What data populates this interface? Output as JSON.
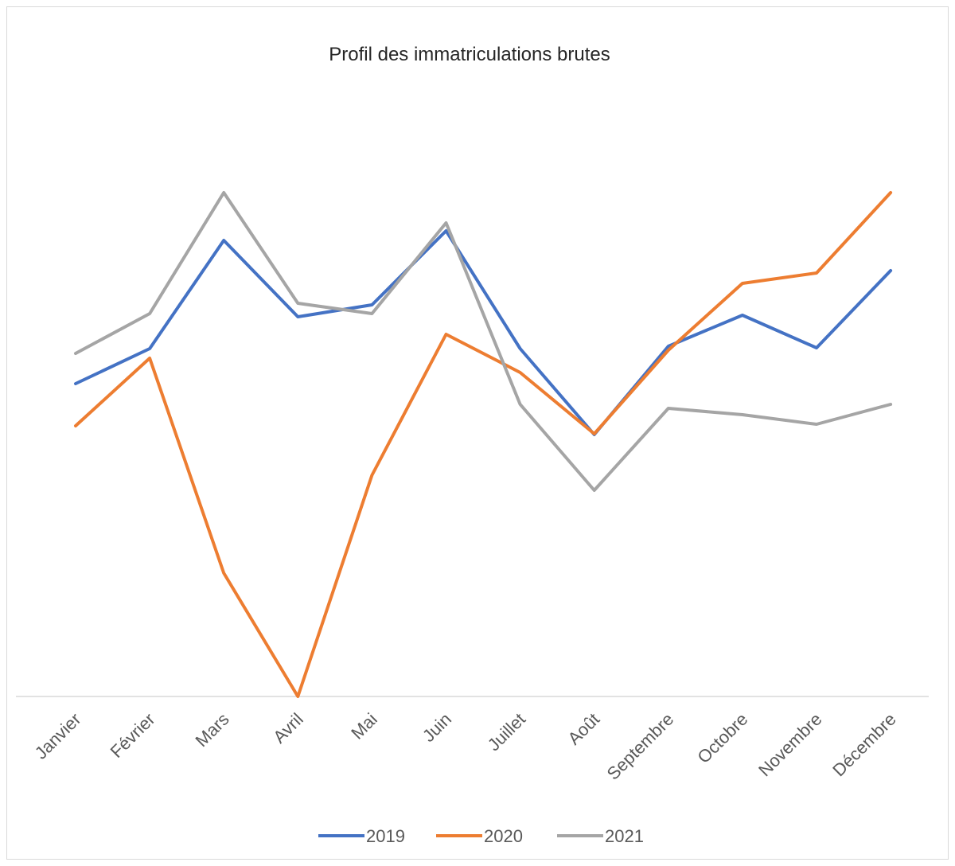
{
  "chart_data": {
    "type": "line",
    "title": "Profil des immatriculations brutes",
    "categories": [
      "Janvier",
      "Février",
      "Mars",
      "Avril",
      "Mai",
      "Juin",
      "Juillet",
      "Août",
      "Septembre",
      "Octobre",
      "Novembre",
      "Décembre"
    ],
    "series": [
      {
        "name": "2019",
        "color": "#4472c4",
        "values": [
          393,
          437,
          573,
          477,
          492,
          585,
          437,
          329,
          440,
          479,
          438,
          535
        ]
      },
      {
        "name": "2020",
        "color": "#ed7d31",
        "values": [
          340,
          425,
          155,
          0,
          278,
          455,
          407,
          330,
          435,
          519,
          532,
          633
        ]
      },
      {
        "name": "2021",
        "color": "#a5a5a5",
        "values": [
          431,
          481,
          633,
          494,
          481,
          595,
          367,
          259,
          362,
          354,
          342,
          367
        ]
      }
    ],
    "legend": "bottom"
  }
}
